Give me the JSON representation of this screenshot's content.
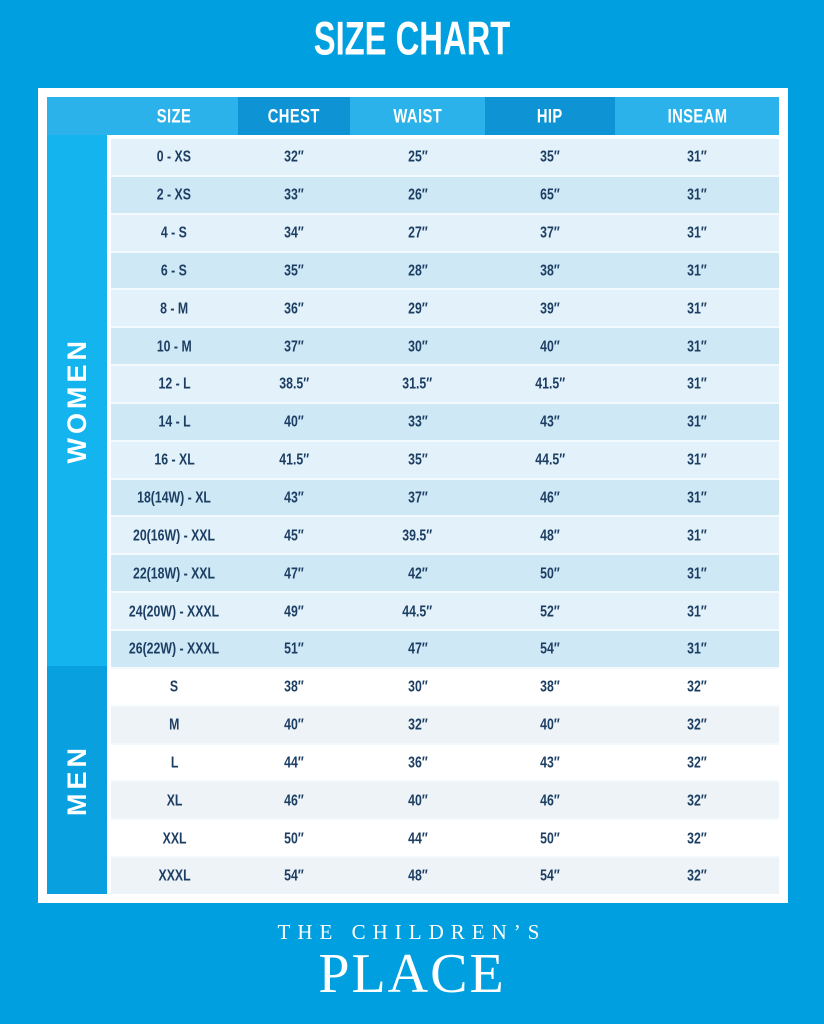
{
  "title": "SIZE CHART",
  "chart_data": {
    "type": "table",
    "title": "SIZE CHART",
    "columns": [
      "SIZE",
      "CHEST",
      "WAIST",
      "HIP",
      "INSEAM"
    ],
    "sections": [
      {
        "label": "WOMEN",
        "rows": [
          [
            "0 - XS",
            "32″",
            "25″",
            "35″",
            "31″"
          ],
          [
            "2 - XS",
            "33″",
            "26″",
            "65″",
            "31″"
          ],
          [
            "4 - S",
            "34″",
            "27″",
            "37″",
            "31″"
          ],
          [
            "6 - S",
            "35″",
            "28″",
            "38″",
            "31″"
          ],
          [
            "8 - M",
            "36″",
            "29″",
            "39″",
            "31″"
          ],
          [
            "10 - M",
            "37″",
            "30″",
            "40″",
            "31″"
          ],
          [
            "12 - L",
            "38.5″",
            "31.5″",
            "41.5″",
            "31″"
          ],
          [
            "14 - L",
            "40″",
            "33″",
            "43″",
            "31″"
          ],
          [
            "16 - XL",
            "41.5″",
            "35″",
            "44.5″",
            "31″"
          ],
          [
            "18(14W) - XL",
            "43″",
            "37″",
            "46″",
            "31″"
          ],
          [
            "20(16W) - XXL",
            "45″",
            "39.5″",
            "48″",
            "31″"
          ],
          [
            "22(18W) - XXL",
            "47″",
            "42″",
            "50″",
            "31″"
          ],
          [
            "24(20W) - XXXL",
            "49″",
            "44.5″",
            "52″",
            "31″"
          ],
          [
            "26(22W) - XXXL",
            "51″",
            "47″",
            "54″",
            "31″"
          ]
        ]
      },
      {
        "label": "MEN",
        "rows": [
          [
            "S",
            "38″",
            "30″",
            "38″",
            "32″"
          ],
          [
            "M",
            "40″",
            "32″",
            "40″",
            "32″"
          ],
          [
            "L",
            "44″",
            "36″",
            "43″",
            "32″"
          ],
          [
            "XL",
            "46″",
            "40″",
            "46″",
            "32″"
          ],
          [
            "XXL",
            "50″",
            "44″",
            "50″",
            "32″"
          ],
          [
            "XXXL",
            "54″",
            "48″",
            "54″",
            "32″"
          ]
        ]
      }
    ]
  },
  "footer": {
    "brand_top": "THE CHILDREN’S",
    "brand_bottom": "PLACE"
  },
  "colors": {
    "background": "#00A0E0",
    "header_light": "#2BB2EA",
    "header_dark": "#0E93D5",
    "women_sidebar": "#14B5EE",
    "men_sidebar": "#09A0DF",
    "women_row_a": "#E2F1FA",
    "women_row_b": "#CFE8F6",
    "men_row_a": "#FFFFFF",
    "men_row_b": "#EDF3F7",
    "cell_text": "#1D3E63",
    "header_text": "#FFFFFF"
  }
}
